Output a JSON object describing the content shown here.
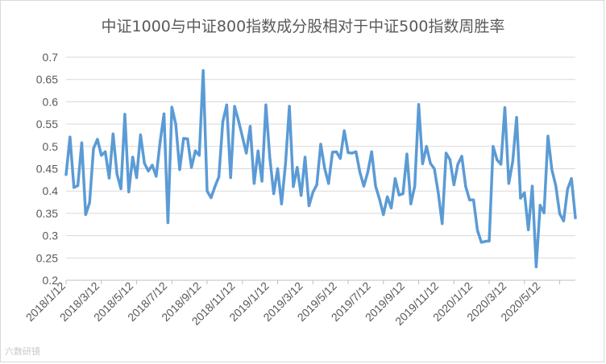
{
  "chart_data": {
    "type": "line",
    "title": "中证1000与中证800指数成分股相对于中证500指数周胜率",
    "xlabel": "",
    "ylabel": "",
    "ylim": [
      0.2,
      0.7
    ],
    "yticks": [
      "0.7",
      "0.65",
      "0.6",
      "0.55",
      "0.5",
      "0.45",
      "0.4",
      "0.35",
      "0.3",
      "0.25",
      "0.2"
    ],
    "xtick_labels": [
      "2018/1/12",
      "2018/3/12",
      "2018/5/12",
      "2018/7/12",
      "2018/9/12",
      "2018/11/12",
      "2019/1/12",
      "2019/3/12",
      "2019/5/12",
      "2019/7/12",
      "2019/9/12",
      "2019/11/12",
      "2020/1/12",
      "2020/3/12",
      "2020/5/12"
    ],
    "grid": true,
    "legend": "none",
    "series": [
      {
        "color": "#5b9bd5",
        "values": [
          0.437,
          0.521,
          0.408,
          0.412,
          0.508,
          0.347,
          0.374,
          0.495,
          0.516,
          0.48,
          0.488,
          0.429,
          0.528,
          0.438,
          0.405,
          0.572,
          0.398,
          0.476,
          0.43,
          0.526,
          0.462,
          0.445,
          0.458,
          0.433,
          0.51,
          0.573,
          0.329,
          0.588,
          0.55,
          0.448,
          0.518,
          0.517,
          0.453,
          0.49,
          0.48,
          0.67,
          0.4,
          0.385,
          0.41,
          0.432,
          0.555,
          0.593,
          0.43,
          0.59,
          0.558,
          0.522,
          0.485,
          0.545,
          0.417,
          0.49,
          0.422,
          0.593,
          0.475,
          0.394,
          0.45,
          0.371,
          0.46,
          0.59,
          0.41,
          0.453,
          0.39,
          0.476,
          0.367,
          0.397,
          0.414,
          0.505,
          0.451,
          0.417,
          0.487,
          0.488,
          0.473,
          0.535,
          0.486,
          0.485,
          0.488,
          0.442,
          0.411,
          0.442,
          0.488,
          0.411,
          0.382,
          0.347,
          0.387,
          0.362,
          0.428,
          0.391,
          0.394,
          0.483,
          0.371,
          0.411,
          0.594,
          0.461,
          0.5,
          0.462,
          0.45,
          0.396,
          0.327,
          0.485,
          0.47,
          0.414,
          0.46,
          0.478,
          0.41,
          0.38,
          0.38,
          0.312,
          0.285,
          0.287,
          0.288,
          0.5,
          0.47,
          0.46,
          0.587,
          0.417,
          0.466,
          0.565,
          0.384,
          0.396,
          0.313,
          0.411,
          0.23,
          0.368,
          0.351,
          0.523,
          0.448,
          0.412,
          0.349,
          0.333,
          0.404,
          0.428,
          0.34
        ]
      }
    ]
  },
  "watermark": "六数研镜"
}
